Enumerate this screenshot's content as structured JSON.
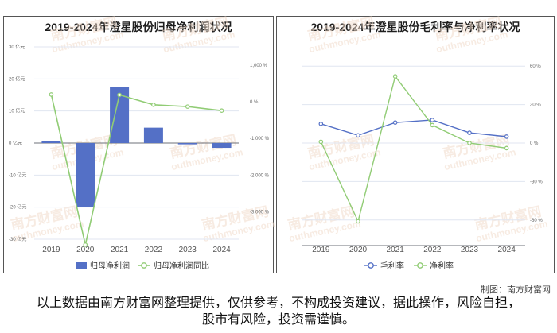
{
  "credit": "制图：南方财富网",
  "disclaimer": "以上数据由南方财富网整理提供，仅供参考，不构成投资建议，据此操作，风险自担，股市有风险，投资需谨慎。",
  "watermark": {
    "cn": "南方财富网",
    "en": "outhmoney.com"
  },
  "colors": {
    "bar": "#5470c6",
    "green": "#91cc75",
    "blue": "#5470c6",
    "grid": "#e0e6f1"
  },
  "chart_data": [
    {
      "type": "bar",
      "title": "2019-2024年澄星股份归母净利润状况",
      "categories": [
        "2019",
        "2020",
        "2021",
        "2022",
        "2023",
        "2024"
      ],
      "y_left": {
        "ticks": [
          -30,
          -20,
          -10,
          0,
          10,
          20,
          30
        ],
        "labels": [
          "-30 亿元",
          "-20 亿元",
          "-10 亿元",
          "0 亿元",
          "10 亿元",
          "20 亿元",
          "30 亿元"
        ],
        "range": [
          -30,
          30
        ]
      },
      "y_right": {
        "ticks": [
          -3000,
          -2000,
          -1000,
          0,
          1000
        ],
        "labels": [
          "-3,000 %",
          "-2,000 %",
          "-1,000 %",
          "0 %",
          "1,000 %"
        ],
        "range": [
          -3750,
          1500
        ]
      },
      "series": [
        {
          "name": "归母净利润",
          "kind": "bar",
          "axis": "left",
          "values": [
            0.6,
            -20,
            17.5,
            4.8,
            -0.4,
            -1.5
          ]
        },
        {
          "name": "归母净利润同比",
          "kind": "line",
          "axis": "right",
          "values": [
            200,
            -3900,
            190,
            -80,
            -130,
            -240
          ]
        }
      ]
    },
    {
      "type": "line",
      "title": "2019-2024年澄星股份毛利率与净利率状况",
      "categories": [
        "2019",
        "2020",
        "2021",
        "2022",
        "2023",
        "2024"
      ],
      "y_right": {
        "ticks": [
          -60,
          -30,
          0,
          30,
          60
        ],
        "labels": [
          "-60 %",
          "-30 %",
          "0 %",
          "30 %",
          "60 %"
        ],
        "range": [
          -75,
          75
        ]
      },
      "series": [
        {
          "name": "毛利率",
          "kind": "line",
          "values": [
            15,
            6,
            16,
            18,
            8,
            5
          ]
        },
        {
          "name": "净利率",
          "kind": "line",
          "values": [
            1,
            -61,
            52,
            14,
            0,
            -4
          ]
        }
      ]
    }
  ]
}
